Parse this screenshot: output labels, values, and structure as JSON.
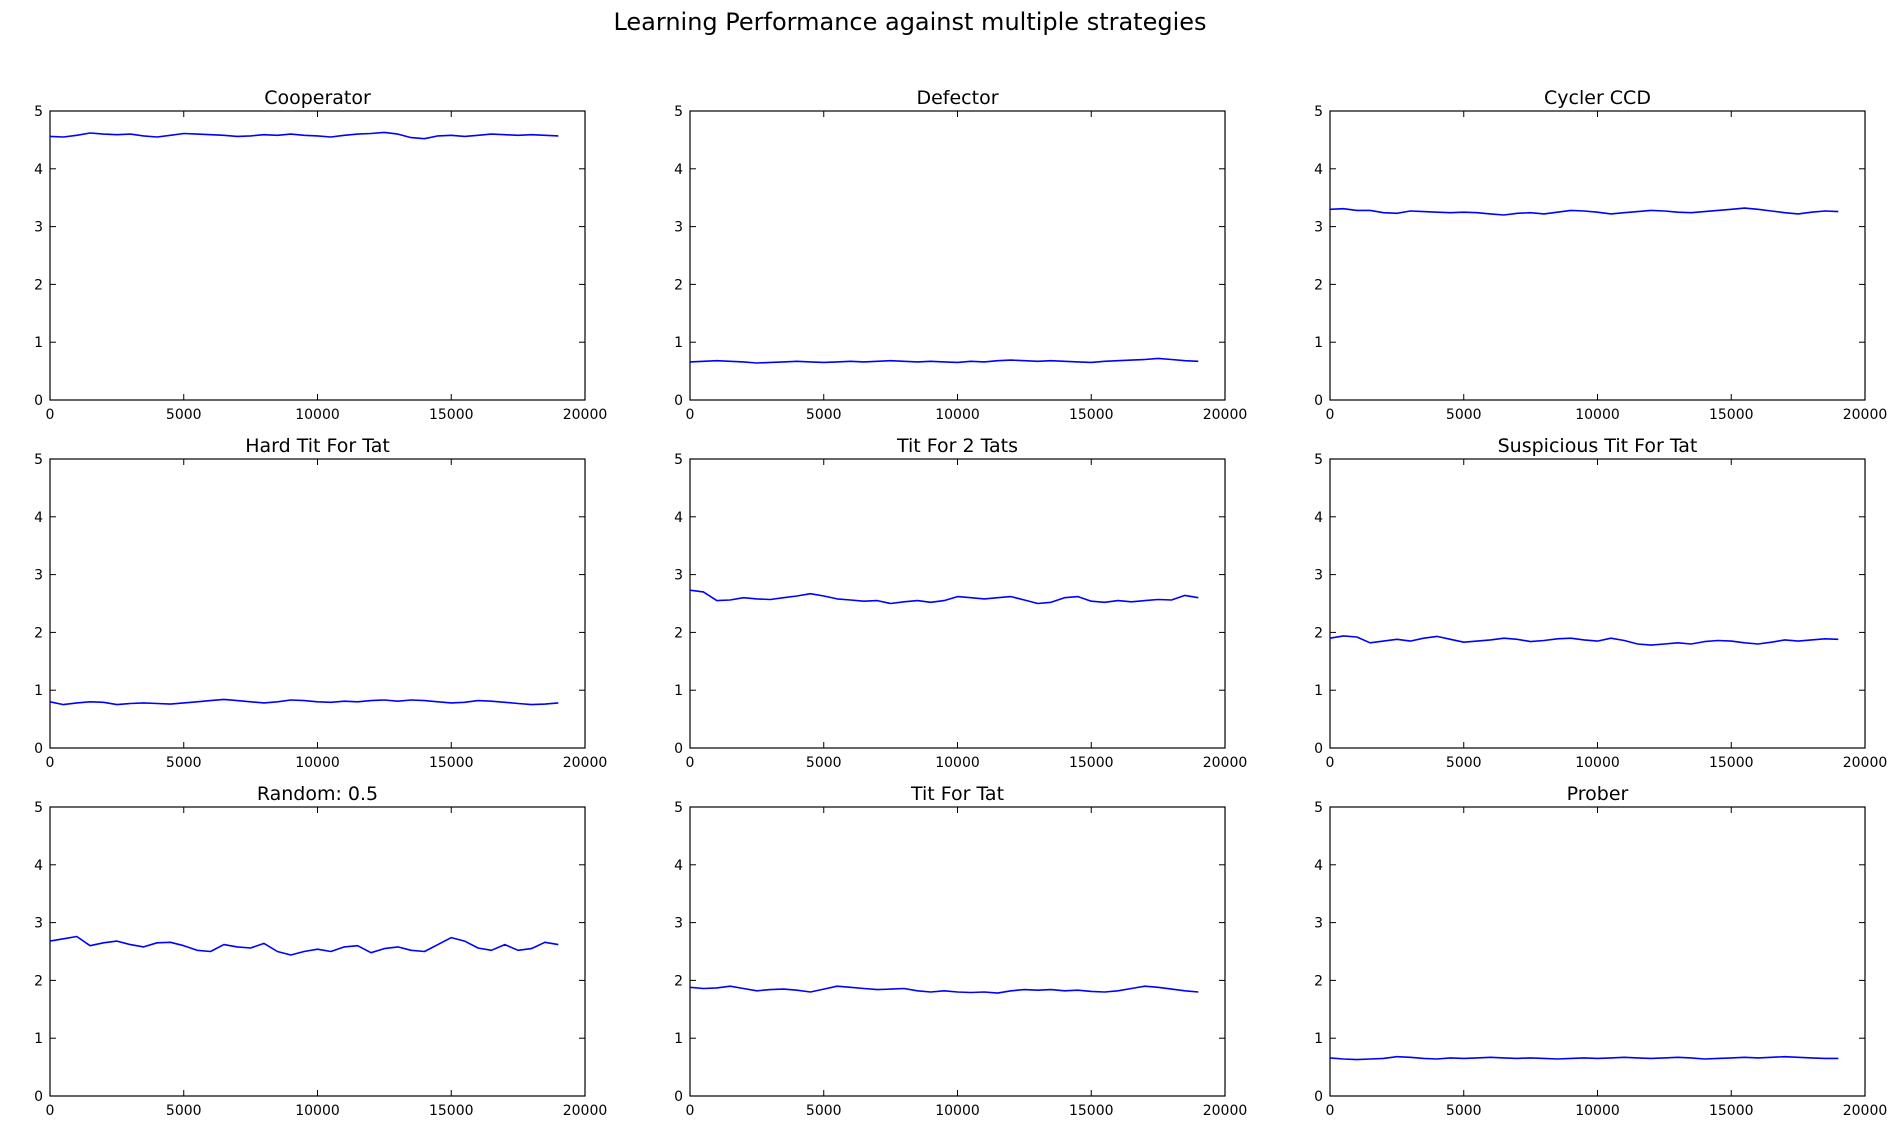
{
  "figure": {
    "suptitle": "Learning Performance against multiple strategies",
    "line_color": "#0000ff"
  },
  "chart_data": [
    {
      "type": "line",
      "title": "Cooperator",
      "xlim": [
        0,
        20000
      ],
      "ylim": [
        0,
        5
      ],
      "xticks": [
        0,
        5000,
        10000,
        15000,
        20000
      ],
      "yticks": [
        0,
        1,
        2,
        3,
        4,
        5
      ],
      "x": [
        0,
        500,
        1000,
        1500,
        2000,
        2500,
        3000,
        3500,
        4000,
        4500,
        5000,
        5500,
        6000,
        6500,
        7000,
        7500,
        8000,
        8500,
        9000,
        9500,
        10000,
        10500,
        11000,
        11500,
        12000,
        12500,
        13000,
        13500,
        14000,
        14500,
        15000,
        15500,
        16000,
        16500,
        17000,
        17500,
        18000,
        18500,
        19000
      ],
      "y": [
        4.56,
        4.55,
        4.58,
        4.62,
        4.6,
        4.59,
        4.6,
        4.57,
        4.55,
        4.58,
        4.61,
        4.6,
        4.59,
        4.58,
        4.56,
        4.57,
        4.59,
        4.58,
        4.6,
        4.58,
        4.57,
        4.55,
        4.58,
        4.6,
        4.61,
        4.63,
        4.6,
        4.54,
        4.52,
        4.57,
        4.58,
        4.56,
        4.58,
        4.6,
        4.59,
        4.58,
        4.59,
        4.58,
        4.57
      ]
    },
    {
      "type": "line",
      "title": "Defector",
      "xlim": [
        0,
        20000
      ],
      "ylim": [
        0,
        5
      ],
      "xticks": [
        0,
        5000,
        10000,
        15000,
        20000
      ],
      "yticks": [
        0,
        1,
        2,
        3,
        4,
        5
      ],
      "x": [
        0,
        500,
        1000,
        1500,
        2000,
        2500,
        3000,
        3500,
        4000,
        4500,
        5000,
        5500,
        6000,
        6500,
        7000,
        7500,
        8000,
        8500,
        9000,
        9500,
        10000,
        10500,
        11000,
        11500,
        12000,
        12500,
        13000,
        13500,
        14000,
        14500,
        15000,
        15500,
        16000,
        16500,
        17000,
        17500,
        18000,
        18500,
        19000
      ],
      "y": [
        0.66,
        0.67,
        0.68,
        0.67,
        0.66,
        0.64,
        0.65,
        0.66,
        0.67,
        0.66,
        0.65,
        0.66,
        0.67,
        0.66,
        0.67,
        0.68,
        0.67,
        0.66,
        0.67,
        0.66,
        0.65,
        0.67,
        0.66,
        0.68,
        0.69,
        0.68,
        0.67,
        0.68,
        0.67,
        0.66,
        0.65,
        0.67,
        0.68,
        0.69,
        0.7,
        0.72,
        0.7,
        0.68,
        0.67
      ]
    },
    {
      "type": "line",
      "title": "Cycler CCD",
      "xlim": [
        0,
        20000
      ],
      "ylim": [
        0,
        5
      ],
      "xticks": [
        0,
        5000,
        10000,
        15000,
        20000
      ],
      "yticks": [
        0,
        1,
        2,
        3,
        4,
        5
      ],
      "x": [
        0,
        500,
        1000,
        1500,
        2000,
        2500,
        3000,
        3500,
        4000,
        4500,
        5000,
        5500,
        6000,
        6500,
        7000,
        7500,
        8000,
        8500,
        9000,
        9500,
        10000,
        10500,
        11000,
        11500,
        12000,
        12500,
        13000,
        13500,
        14000,
        14500,
        15000,
        15500,
        16000,
        16500,
        17000,
        17500,
        18000,
        18500,
        19000
      ],
      "y": [
        3.3,
        3.31,
        3.28,
        3.28,
        3.24,
        3.23,
        3.27,
        3.26,
        3.25,
        3.24,
        3.25,
        3.24,
        3.22,
        3.2,
        3.23,
        3.24,
        3.22,
        3.25,
        3.28,
        3.27,
        3.25,
        3.22,
        3.24,
        3.26,
        3.28,
        3.27,
        3.25,
        3.24,
        3.26,
        3.28,
        3.3,
        3.32,
        3.3,
        3.27,
        3.24,
        3.22,
        3.25,
        3.27,
        3.26
      ]
    },
    {
      "type": "line",
      "title": "Hard Tit For Tat",
      "xlim": [
        0,
        20000
      ],
      "ylim": [
        0,
        5
      ],
      "xticks": [
        0,
        5000,
        10000,
        15000,
        20000
      ],
      "yticks": [
        0,
        1,
        2,
        3,
        4,
        5
      ],
      "x": [
        0,
        500,
        1000,
        1500,
        2000,
        2500,
        3000,
        3500,
        4000,
        4500,
        5000,
        5500,
        6000,
        6500,
        7000,
        7500,
        8000,
        8500,
        9000,
        9500,
        10000,
        10500,
        11000,
        11500,
        12000,
        12500,
        13000,
        13500,
        14000,
        14500,
        15000,
        15500,
        16000,
        16500,
        17000,
        17500,
        18000,
        18500,
        19000
      ],
      "y": [
        0.8,
        0.75,
        0.78,
        0.8,
        0.79,
        0.75,
        0.77,
        0.78,
        0.77,
        0.76,
        0.78,
        0.8,
        0.82,
        0.84,
        0.82,
        0.8,
        0.78,
        0.8,
        0.83,
        0.82,
        0.8,
        0.79,
        0.81,
        0.8,
        0.82,
        0.83,
        0.81,
        0.83,
        0.82,
        0.8,
        0.78,
        0.79,
        0.82,
        0.81,
        0.79,
        0.77,
        0.75,
        0.76,
        0.78
      ]
    },
    {
      "type": "line",
      "title": "Tit For 2 Tats",
      "xlim": [
        0,
        20000
      ],
      "ylim": [
        0,
        5
      ],
      "xticks": [
        0,
        5000,
        10000,
        15000,
        20000
      ],
      "yticks": [
        0,
        1,
        2,
        3,
        4,
        5
      ],
      "x": [
        0,
        500,
        1000,
        1500,
        2000,
        2500,
        3000,
        3500,
        4000,
        4500,
        5000,
        5500,
        6000,
        6500,
        7000,
        7500,
        8000,
        8500,
        9000,
        9500,
        10000,
        10500,
        11000,
        11500,
        12000,
        12500,
        13000,
        13500,
        14000,
        14500,
        15000,
        15500,
        16000,
        16500,
        17000,
        17500,
        18000,
        18500,
        19000
      ],
      "y": [
        2.73,
        2.7,
        2.55,
        2.56,
        2.6,
        2.58,
        2.57,
        2.6,
        2.63,
        2.67,
        2.63,
        2.58,
        2.56,
        2.54,
        2.55,
        2.5,
        2.53,
        2.55,
        2.52,
        2.55,
        2.62,
        2.6,
        2.58,
        2.6,
        2.62,
        2.56,
        2.5,
        2.52,
        2.6,
        2.62,
        2.54,
        2.52,
        2.55,
        2.53,
        2.55,
        2.57,
        2.56,
        2.64,
        2.6
      ]
    },
    {
      "type": "line",
      "title": "Suspicious Tit For Tat",
      "xlim": [
        0,
        20000
      ],
      "ylim": [
        0,
        5
      ],
      "xticks": [
        0,
        5000,
        10000,
        15000,
        20000
      ],
      "yticks": [
        0,
        1,
        2,
        3,
        4,
        5
      ],
      "x": [
        0,
        500,
        1000,
        1500,
        2000,
        2500,
        3000,
        3500,
        4000,
        4500,
        5000,
        5500,
        6000,
        6500,
        7000,
        7500,
        8000,
        8500,
        9000,
        9500,
        10000,
        10500,
        11000,
        11500,
        12000,
        12500,
        13000,
        13500,
        14000,
        14500,
        15000,
        15500,
        16000,
        16500,
        17000,
        17500,
        18000,
        18500,
        19000
      ],
      "y": [
        1.9,
        1.94,
        1.92,
        1.82,
        1.85,
        1.88,
        1.85,
        1.9,
        1.93,
        1.88,
        1.83,
        1.85,
        1.87,
        1.9,
        1.88,
        1.84,
        1.86,
        1.89,
        1.9,
        1.87,
        1.85,
        1.9,
        1.86,
        1.8,
        1.78,
        1.8,
        1.82,
        1.8,
        1.84,
        1.86,
        1.85,
        1.82,
        1.8,
        1.83,
        1.87,
        1.85,
        1.87,
        1.89,
        1.88
      ]
    },
    {
      "type": "line",
      "title": "Random: 0.5",
      "xlim": [
        0,
        20000
      ],
      "ylim": [
        0,
        5
      ],
      "xticks": [
        0,
        5000,
        10000,
        15000,
        20000
      ],
      "yticks": [
        0,
        1,
        2,
        3,
        4,
        5
      ],
      "x": [
        0,
        500,
        1000,
        1500,
        2000,
        2500,
        3000,
        3500,
        4000,
        4500,
        5000,
        5500,
        6000,
        6500,
        7000,
        7500,
        8000,
        8500,
        9000,
        9500,
        10000,
        10500,
        11000,
        11500,
        12000,
        12500,
        13000,
        13500,
        14000,
        14500,
        15000,
        15500,
        16000,
        16500,
        17000,
        17500,
        18000,
        18500,
        19000
      ],
      "y": [
        2.68,
        2.72,
        2.76,
        2.6,
        2.65,
        2.68,
        2.62,
        2.58,
        2.65,
        2.66,
        2.6,
        2.52,
        2.5,
        2.62,
        2.58,
        2.56,
        2.64,
        2.5,
        2.44,
        2.5,
        2.54,
        2.5,
        2.58,
        2.6,
        2.48,
        2.55,
        2.58,
        2.52,
        2.5,
        2.62,
        2.74,
        2.68,
        2.56,
        2.52,
        2.62,
        2.52,
        2.55,
        2.66,
        2.62
      ]
    },
    {
      "type": "line",
      "title": "Tit For Tat",
      "xlim": [
        0,
        20000
      ],
      "ylim": [
        0,
        5
      ],
      "xticks": [
        0,
        5000,
        10000,
        15000,
        20000
      ],
      "yticks": [
        0,
        1,
        2,
        3,
        4,
        5
      ],
      "x": [
        0,
        500,
        1000,
        1500,
        2000,
        2500,
        3000,
        3500,
        4000,
        4500,
        5000,
        5500,
        6000,
        6500,
        7000,
        7500,
        8000,
        8500,
        9000,
        9500,
        10000,
        10500,
        11000,
        11500,
        12000,
        12500,
        13000,
        13500,
        14000,
        14500,
        15000,
        15500,
        16000,
        16500,
        17000,
        17500,
        18000,
        18500,
        19000
      ],
      "y": [
        1.88,
        1.86,
        1.87,
        1.9,
        1.86,
        1.82,
        1.84,
        1.85,
        1.83,
        1.8,
        1.85,
        1.9,
        1.88,
        1.86,
        1.84,
        1.85,
        1.86,
        1.82,
        1.8,
        1.82,
        1.8,
        1.79,
        1.8,
        1.78,
        1.82,
        1.84,
        1.83,
        1.84,
        1.82,
        1.83,
        1.81,
        1.8,
        1.82,
        1.86,
        1.9,
        1.88,
        1.85,
        1.82,
        1.8
      ]
    },
    {
      "type": "line",
      "title": "Prober",
      "xlim": [
        0,
        20000
      ],
      "ylim": [
        0,
        5
      ],
      "xticks": [
        0,
        5000,
        10000,
        15000,
        20000
      ],
      "yticks": [
        0,
        1,
        2,
        3,
        4,
        5
      ],
      "x": [
        0,
        500,
        1000,
        1500,
        2000,
        2500,
        3000,
        3500,
        4000,
        4500,
        5000,
        5500,
        6000,
        6500,
        7000,
        7500,
        8000,
        8500,
        9000,
        9500,
        10000,
        10500,
        11000,
        11500,
        12000,
        12500,
        13000,
        13500,
        14000,
        14500,
        15000,
        15500,
        16000,
        16500,
        17000,
        17500,
        18000,
        18500,
        19000
      ],
      "y": [
        0.66,
        0.64,
        0.63,
        0.64,
        0.65,
        0.68,
        0.67,
        0.65,
        0.64,
        0.66,
        0.65,
        0.66,
        0.67,
        0.66,
        0.65,
        0.66,
        0.65,
        0.64,
        0.65,
        0.66,
        0.65,
        0.66,
        0.67,
        0.66,
        0.65,
        0.66,
        0.67,
        0.66,
        0.64,
        0.65,
        0.66,
        0.67,
        0.66,
        0.67,
        0.68,
        0.67,
        0.66,
        0.65,
        0.65
      ]
    }
  ]
}
